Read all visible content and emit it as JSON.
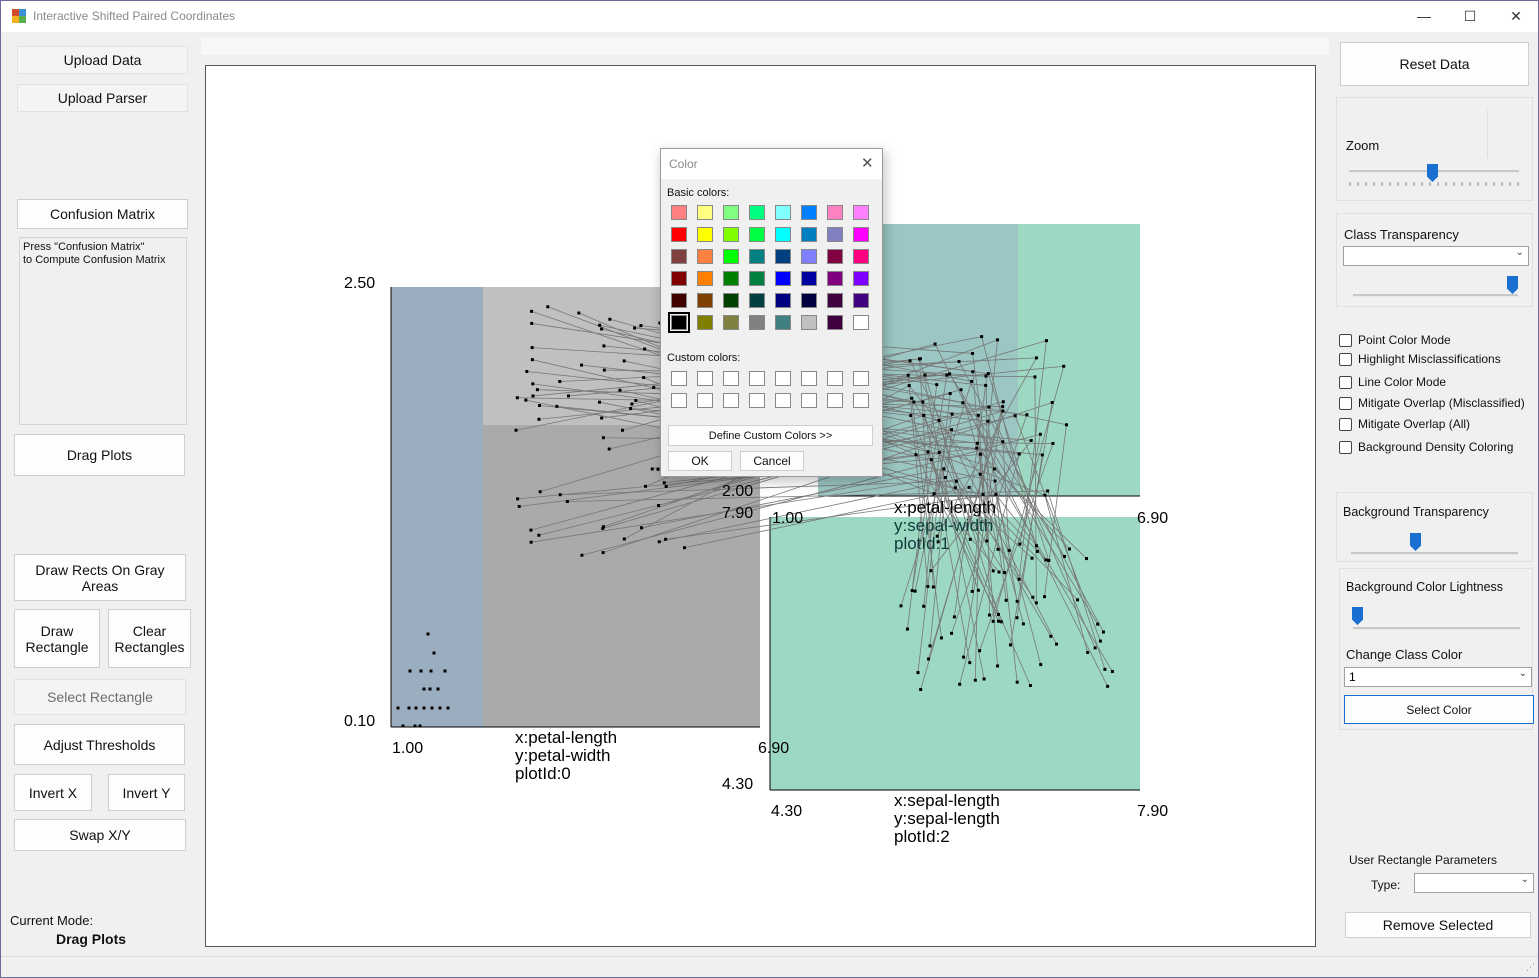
{
  "window": {
    "title": "Interactive Shifted Paired Coordinates",
    "controls": {
      "minimize": "—",
      "maximize": "☐",
      "close": "✕"
    }
  },
  "left": {
    "upload_data": "Upload Data",
    "upload_parser": "Upload Parser",
    "confusion_matrix": "Confusion Matrix",
    "cm_text_1": "Press \"Confusion Matrix\"",
    "cm_text_2": "to Compute Confusion Matrix",
    "drag_plots": "Drag Plots",
    "draw_rects_gray": "Draw Rects On Gray Areas",
    "draw_rectangle": "Draw Rectangle",
    "clear_rectangles": "Clear Rectangles",
    "select_rectangle": "Select Rectangle",
    "adjust_thresholds": "Adjust Thresholds",
    "invert_x": "Invert X",
    "invert_y": "Invert Y",
    "swap_xy": "Swap X/Y",
    "current_mode_label": "Current Mode:",
    "current_mode_value": "Drag Plots"
  },
  "right": {
    "reset_data": "Reset Data",
    "zoom_label": "Zoom",
    "zoom_level": 0.5,
    "class_transparency_label": "Class Transparency",
    "class_transparency_selected": "",
    "class_transparency_level": 1.0,
    "checkboxes": [
      {
        "label": "Point Color Mode",
        "checked": false
      },
      {
        "label": "Highlight Misclassifications",
        "checked": false
      },
      {
        "label": "Line Color Mode",
        "checked": false
      },
      {
        "label": "Mitigate Overlap (Misclassified)",
        "checked": false
      },
      {
        "label": "Mitigate Overlap (All)",
        "checked": false
      },
      {
        "label": "Background Density Coloring",
        "checked": false
      }
    ],
    "bg_transparency_label": "Background Transparency",
    "bg_transparency_level": 0.43,
    "bg_lightness_label": "Background Color Lightness",
    "bg_lightness_level": 0.0,
    "change_class_color_label": "Change Class Color",
    "class_selected": "1",
    "select_color": "Select Color",
    "user_rect_params": "User Rectangle Parameters",
    "type_label": "Type:",
    "type_selected": "",
    "remove_selected": "Remove Selected"
  },
  "plots": [
    {
      "x_label": "x:petal-length",
      "y_label": "y:petal-width",
      "id_label": "plotId:0",
      "x_min": "1.00",
      "x_max": "6.90",
      "y_min": "0.10",
      "y_max": "2.50"
    },
    {
      "x_label": "x:petal-length",
      "y_label": "y:sepal-width",
      "id_label": "plotId:1",
      "x_min": "1.00",
      "x_max": "6.90",
      "y_min": "2.00",
      "y_max": ""
    },
    {
      "x_label": "x:sepal-length",
      "y_label": "y:sepal-length",
      "id_label": "plotId:2",
      "x_min": "4.30",
      "x_max": "7.90",
      "y_min": "4.30",
      "y_max": "7.90"
    }
  ],
  "colors": {
    "blue_region": "#9aaec0",
    "gray_light": "#c0c0c0",
    "gray_dark": "#aaaaaa",
    "teal_region": "#9dd8c2",
    "teal_dark": "#9bc6c3",
    "line": "#777777",
    "accent": "#1a6fd0"
  },
  "dialog": {
    "title": "Color",
    "basic_colors_label": "Basic colors:",
    "custom_colors_label": "Custom colors:",
    "define_custom": "Define Custom Colors >>",
    "ok": "OK",
    "cancel": "Cancel",
    "basic_colors": [
      "#ff8080",
      "#ffff80",
      "#80ff80",
      "#00ff80",
      "#80ffff",
      "#0080ff",
      "#ff80c0",
      "#ff80ff",
      "#ff0000",
      "#ffff00",
      "#80ff00",
      "#00ff40",
      "#00ffff",
      "#0080c0",
      "#8080c0",
      "#ff00ff",
      "#804040",
      "#ff8040",
      "#00ff00",
      "#008080",
      "#004080",
      "#8080ff",
      "#800040",
      "#ff0080",
      "#800000",
      "#ff8000",
      "#008000",
      "#008040",
      "#0000ff",
      "#0000a0",
      "#800080",
      "#8000ff",
      "#400000",
      "#804000",
      "#004000",
      "#004040",
      "#000080",
      "#000040",
      "#400040",
      "#400080",
      "#000000",
      "#808000",
      "#808040",
      "#808080",
      "#408080",
      "#c0c0c0",
      "#400040",
      "#ffffff"
    ],
    "selected_index": 40
  }
}
